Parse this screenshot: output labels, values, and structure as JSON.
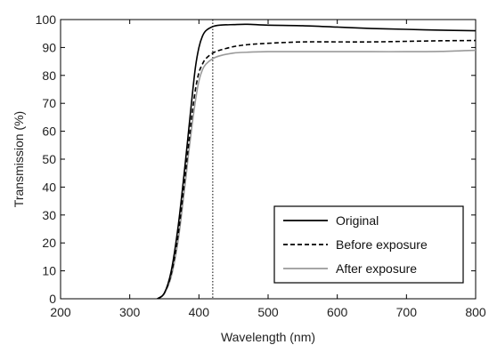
{
  "chart_data": {
    "type": "line",
    "xlabel": "Wavelength (nm)",
    "ylabel": "Transmission (%)",
    "xlim": [
      200,
      800
    ],
    "ylim": [
      0,
      100
    ],
    "x_ticks": [
      200,
      300,
      400,
      500,
      600,
      700,
      800
    ],
    "y_ticks": [
      0,
      10,
      20,
      30,
      40,
      50,
      60,
      70,
      80,
      90,
      100
    ],
    "grid": false,
    "legend_position": "bottom-right",
    "reference_line": {
      "x": 420,
      "style": "dotted"
    },
    "series": [
      {
        "name": "Original",
        "style": "solid",
        "color": "#000000",
        "x": [
          340,
          350,
          360,
          370,
          380,
          385,
          390,
          395,
          400,
          405,
          410,
          420,
          430,
          450,
          470,
          500,
          550,
          600,
          650,
          700,
          750,
          800
        ],
        "y": [
          0,
          2,
          10,
          26,
          48,
          60,
          72,
          83,
          90,
          94,
          96,
          97.5,
          98,
          98.2,
          98.3,
          98,
          97.8,
          97.3,
          96.8,
          96.5,
          96.2,
          96
        ]
      },
      {
        "name": "Before exposure",
        "style": "dashed",
        "color": "#000000",
        "x": [
          340,
          350,
          360,
          370,
          380,
          385,
          390,
          395,
          400,
          405,
          410,
          420,
          430,
          450,
          470,
          500,
          550,
          600,
          650,
          700,
          750,
          800
        ],
        "y": [
          0,
          2,
          9,
          23,
          44,
          55,
          66,
          75,
          81,
          84,
          86,
          88,
          89,
          90.3,
          91,
          91.5,
          92,
          92,
          92,
          92.2,
          92.4,
          92.5
        ]
      },
      {
        "name": "After exposure",
        "style": "solid",
        "color": "#9a9a9a",
        "x": [
          340,
          350,
          360,
          370,
          380,
          385,
          390,
          395,
          400,
          405,
          410,
          420,
          430,
          450,
          470,
          500,
          550,
          600,
          650,
          700,
          750,
          800
        ],
        "y": [
          0,
          2,
          8,
          21,
          41,
          52,
          62,
          71,
          78,
          82,
          84,
          86,
          87,
          88,
          88.3,
          88.5,
          88.5,
          88.5,
          88.5,
          88.5,
          88.6,
          89
        ]
      }
    ]
  }
}
